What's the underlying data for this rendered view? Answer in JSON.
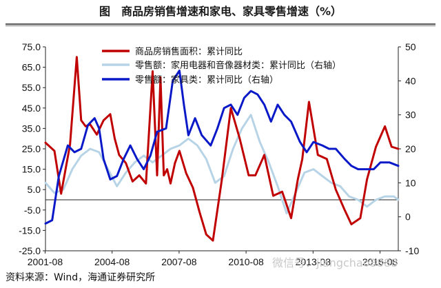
{
  "title": "图　商品房销售增速和家电、家具零售增速（%）",
  "source": "资料来源：Wind，海通证券研究所",
  "watermark": "微信号：jiangchao8888",
  "chart_data": {
    "type": "line",
    "x_ticks": [
      "2001-08",
      "2004-08",
      "2007-08",
      "2010-08",
      "2013-08",
      "2016-08"
    ],
    "y_left": {
      "range": [
        -25,
        75
      ],
      "ticks": [
        "75.0",
        "65.0",
        "55.0",
        "45.0",
        "35.0",
        "25.0",
        "15.0",
        "5.0",
        "-5.0",
        "-15.0",
        "-25.0"
      ]
    },
    "y_right": {
      "range": [
        -10,
        50
      ],
      "ticks": [
        "50",
        "40",
        "30",
        "20",
        "10",
        "0",
        "-10"
      ]
    },
    "legend": [
      {
        "label": "商品房销售面积：累计同比",
        "color": "#c00000"
      },
      {
        "label": "零售额：家用电器和音像器材类：累计同比（右轴）",
        "color": "#b7d3e6"
      },
      {
        "label": "零售额：家具类：累计同比（右轴）",
        "color": "#0a19c8"
      }
    ],
    "series": [
      {
        "name": "商品房销售面积：累计同比",
        "axis": "left",
        "color": "#c00000",
        "x": [
          2001.6,
          2002.0,
          2002.3,
          2002.7,
          2003.0,
          2003.2,
          2003.4,
          2003.6,
          2003.9,
          2004.2,
          2004.5,
          2004.7,
          2004.9,
          2005.2,
          2005.5,
          2005.8,
          2006.1,
          2006.4,
          2006.6,
          2006.75,
          2006.9,
          2007.05,
          2007.2,
          2007.4,
          2007.6,
          2007.9,
          2008.2,
          2008.5,
          2008.8,
          2009.1,
          2009.5,
          2009.9,
          2010.3,
          2010.7,
          2011.0,
          2011.4,
          2011.8,
          2012.2,
          2012.6,
          2012.9,
          2013.1,
          2013.4,
          2013.8,
          2014.2,
          2014.6,
          2015.0,
          2015.3,
          2015.7,
          2016.0,
          2016.4,
          2016.8,
          2017.1,
          2017.4
        ],
        "values": [
          28,
          24,
          3,
          27,
          70,
          39,
          36,
          37,
          32,
          39,
          42,
          30,
          22,
          18,
          9,
          12,
          8,
          63,
          12,
          60,
          12,
          15,
          8,
          18,
          24,
          13,
          6,
          -6,
          -17,
          -20,
          10,
          45,
          30,
          12,
          12,
          22,
          2,
          4,
          -9,
          10,
          20,
          48,
          22,
          20,
          5,
          -5,
          -12,
          -9,
          10,
          26,
          36,
          26,
          25
        ]
      },
      {
        "name": "零售额：家用电器和音像器材类：累计同比（右轴）",
        "axis": "right",
        "color": "#b7d3e6",
        "x": [
          2001.6,
          2002.0,
          2002.4,
          2002.8,
          2003.2,
          2003.6,
          2004.0,
          2004.4,
          2004.8,
          2005.2,
          2005.6,
          2006.0,
          2006.4,
          2006.8,
          2007.2,
          2007.6,
          2008.0,
          2008.4,
          2008.8,
          2009.2,
          2009.6,
          2010.0,
          2010.4,
          2010.8,
          2011.2,
          2011.6,
          2012.0,
          2012.4,
          2012.8,
          2013.2,
          2013.6,
          2014.0,
          2014.4,
          2014.8,
          2015.2,
          2015.6,
          2016.0,
          2016.4,
          2016.8,
          2017.2,
          2017.4
        ],
        "values": [
          10,
          7,
          8,
          14,
          18,
          20,
          19,
          14,
          9,
          13,
          16,
          18,
          16,
          18,
          20,
          21,
          23,
          21,
          17,
          10,
          12,
          20,
          26,
          30,
          22,
          16,
          9,
          1,
          7,
          13,
          14,
          12,
          10,
          9,
          6,
          5,
          3,
          5,
          6,
          6,
          5
        ]
      },
      {
        "name": "零售额：家具类：累计同比（右轴）",
        "axis": "right",
        "color": "#0a19c8",
        "x": [
          2001.6,
          2001.9,
          2002.2,
          2002.6,
          2002.9,
          2003.2,
          2003.5,
          2003.8,
          2004.0,
          2004.2,
          2004.5,
          2004.8,
          2005.1,
          2005.4,
          2005.7,
          2006.0,
          2006.3,
          2006.6,
          2007.0,
          2007.3,
          2007.6,
          2007.8,
          2008.0,
          2008.3,
          2008.6,
          2009.0,
          2009.3,
          2009.6,
          2009.9,
          2010.2,
          2010.5,
          2010.8,
          2011.1,
          2011.4,
          2011.7,
          2012.0,
          2012.3,
          2012.6,
          2013.0,
          2013.3,
          2013.6,
          2014.0,
          2014.3,
          2014.6,
          2015.0,
          2015.3,
          2015.6,
          2016.0,
          2016.3,
          2016.6,
          2017.0,
          2017.4
        ],
        "values": [
          -2,
          -1,
          12,
          21,
          19,
          20,
          27,
          29,
          26,
          17,
          11,
          12,
          17,
          21,
          17,
          14,
          18,
          25,
          26,
          40,
          43,
          33,
          24,
          29,
          24,
          21,
          26,
          32,
          33,
          30,
          35,
          37,
          36,
          33,
          28,
          33,
          30,
          28,
          22,
          19,
          22,
          21,
          20,
          20,
          17,
          15,
          14,
          14,
          14,
          16,
          16,
          15
        ]
      }
    ]
  }
}
